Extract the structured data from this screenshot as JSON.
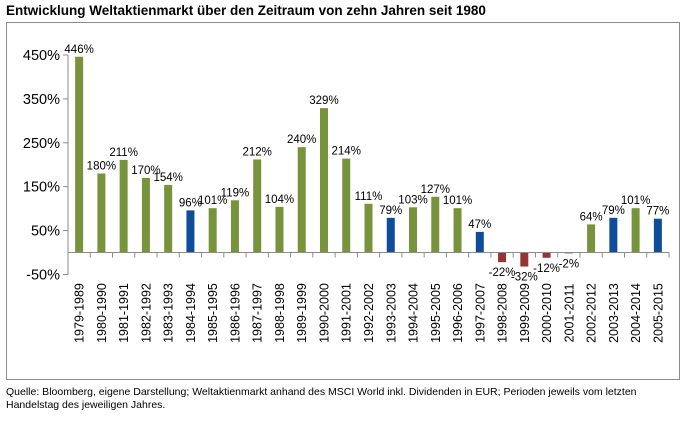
{
  "title": "Entwicklung Weltaktienmarkt über den Zeitraum von zehn Jahren seit 1980",
  "source": "Quelle: Bloomberg, eigene Darstellung; Weltaktienmarkt anhand des MSCI World inkl. Dividenden in EUR; Perioden jeweils vom letzten Handelstag des jeweiligen Jahres.",
  "colors": {
    "green": "#77933c",
    "blue": "#0f4c9a",
    "red": "#963634",
    "axis": "#8c8c8c",
    "grid": "#d9d9d9"
  },
  "chart_data": {
    "type": "bar",
    "title": "Entwicklung Weltaktienmarkt über den Zeitraum von zehn Jahren seit 1980",
    "xlabel": "",
    "ylabel": "",
    "ylim": [
      -50,
      450
    ],
    "yticks": [
      -50,
      50,
      150,
      250,
      350,
      450
    ],
    "ytick_labels": [
      "-50%",
      "50%",
      "150%",
      "250%",
      "350%",
      "450%"
    ],
    "grid": false,
    "legend": "none",
    "categories": [
      "1979-1989",
      "1980-1990",
      "1981-1991",
      "1982-1992",
      "1983-1993",
      "1984-1994",
      "1985-1995",
      "1986-1996",
      "1987-1997",
      "1988-1998",
      "1989-1999",
      "1990-2000",
      "1991-2001",
      "1992-2002",
      "1993-2003",
      "1994-2004",
      "1995-2005",
      "1996-2006",
      "1997-2007",
      "1998-2008",
      "1999-2009",
      "2000-2010",
      "2001-2011",
      "2002-2012",
      "2003-2013",
      "2004-2014",
      "2005-2015"
    ],
    "values": [
      446,
      180,
      211,
      170,
      154,
      96,
      101,
      119,
      212,
      104,
      240,
      329,
      214,
      111,
      79,
      103,
      127,
      101,
      47,
      -22,
      -32,
      -12,
      -2,
      64,
      79,
      101,
      77
    ],
    "labels": [
      "446%",
      "180%",
      "211%",
      "170%",
      "154%",
      "96%",
      "101%",
      "119%",
      "212%",
      "104%",
      "240%",
      "329%",
      "214%",
      "111%",
      "79%",
      "103%",
      "127%",
      "101%",
      "47%",
      "-22%",
      "-32%",
      "-12%",
      "-2%",
      "64%",
      "79%",
      "101%",
      "77%"
    ],
    "bar_colors": [
      "green",
      "green",
      "green",
      "green",
      "green",
      "blue",
      "green",
      "green",
      "green",
      "green",
      "green",
      "green",
      "green",
      "green",
      "blue",
      "green",
      "green",
      "green",
      "blue",
      "red",
      "red",
      "red",
      "red",
      "green",
      "blue",
      "green",
      "blue"
    ]
  }
}
